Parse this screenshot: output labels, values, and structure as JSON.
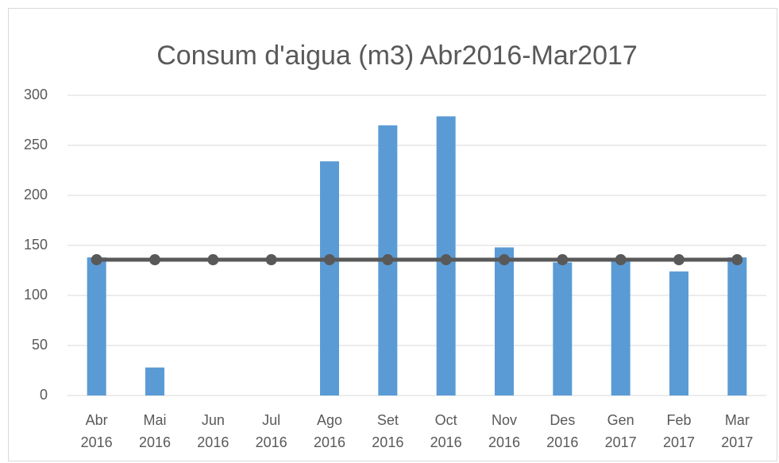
{
  "chart_data": {
    "type": "bar",
    "title": "Consum d'aigua (m3) Abr2016-Mar2017",
    "categories": [
      "Abr 2016",
      "Mai 2016",
      "Jun 2016",
      "Jul 2016",
      "Ago 2016",
      "Set 2016",
      "Oct 2016",
      "Nov 2016",
      "Des 2016",
      "Gen 2017",
      "Feb 2017",
      "Mar 2017"
    ],
    "series": [
      {
        "type": "bar",
        "color": "#5b9bd5",
        "values": [
          138,
          28,
          0,
          0,
          234,
          270,
          279,
          148,
          133,
          136,
          124,
          138
        ]
      },
      {
        "type": "line",
        "color": "#595959",
        "values": [
          135.7,
          135.7,
          135.7,
          135.7,
          135.7,
          135.7,
          135.7,
          135.7,
          135.7,
          135.7,
          135.7,
          135.7
        ]
      }
    ],
    "ylim": [
      0,
      300
    ],
    "yticks": [
      0,
      50,
      100,
      150,
      200,
      250,
      300
    ],
    "grid": true
  }
}
